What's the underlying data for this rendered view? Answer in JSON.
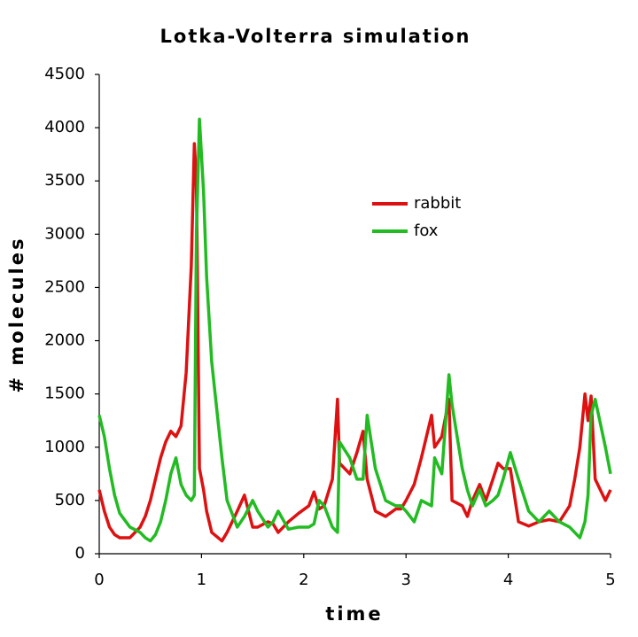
{
  "chart_data": {
    "type": "line",
    "title": "Lotka-Volterra simulation",
    "xlabel": "time",
    "ylabel": "# molecules",
    "x": [
      0,
      0.05,
      0.1,
      0.15,
      0.2,
      0.3,
      0.4,
      0.45,
      0.5,
      0.55,
      0.6,
      0.65,
      0.7,
      0.75,
      0.8,
      0.85,
      0.9,
      0.93,
      0.95,
      0.98,
      1.02,
      1.05,
      1.1,
      1.2,
      1.25,
      1.35,
      1.42,
      1.5,
      1.55,
      1.65,
      1.7,
      1.75,
      1.85,
      1.95,
      2.05,
      2.1,
      2.15,
      2.2,
      2.28,
      2.33,
      2.35,
      2.45,
      2.52,
      2.58,
      2.62,
      2.7,
      2.8,
      2.9,
      2.95,
      3.0,
      3.08,
      3.15,
      3.25,
      3.28,
      3.35,
      3.42,
      3.45,
      3.55,
      3.6,
      3.65,
      3.72,
      3.78,
      3.85,
      3.9,
      3.95,
      4.02,
      4.1,
      4.2,
      4.3,
      4.4,
      4.5,
      4.6,
      4.65,
      4.7,
      4.75,
      4.78,
      4.81,
      4.85,
      4.95,
      5.0
    ],
    "series": [
      {
        "name": "rabbit",
        "color": "#dd1111",
        "values": [
          600,
          400,
          250,
          180,
          150,
          150,
          250,
          350,
          500,
          700,
          900,
          1050,
          1150,
          1100,
          1200,
          1700,
          2700,
          3850,
          3500,
          800,
          600,
          400,
          200,
          120,
          200,
          400,
          550,
          250,
          250,
          300,
          280,
          200,
          300,
          380,
          450,
          580,
          420,
          450,
          700,
          1450,
          850,
          750,
          950,
          1150,
          700,
          400,
          350,
          420,
          420,
          500,
          650,
          900,
          1300,
          1000,
          1100,
          1450,
          500,
          450,
          350,
          500,
          650,
          500,
          700,
          850,
          800,
          800,
          300,
          260,
          300,
          320,
          300,
          450,
          700,
          1000,
          1500,
          1250,
          1480,
          700,
          500,
          600
        ]
      },
      {
        "name": "fox",
        "color": "#22bb22",
        "values": [
          1300,
          1100,
          800,
          550,
          380,
          250,
          200,
          150,
          120,
          180,
          300,
          500,
          750,
          900,
          650,
          550,
          500,
          550,
          3000,
          4080,
          3400,
          2600,
          1800,
          900,
          500,
          250,
          350,
          500,
          400,
          250,
          300,
          400,
          230,
          250,
          250,
          280,
          500,
          450,
          250,
          200,
          1050,
          900,
          700,
          700,
          1300,
          800,
          500,
          450,
          450,
          400,
          300,
          500,
          450,
          900,
          750,
          1680,
          1400,
          800,
          600,
          450,
          600,
          450,
          500,
          550,
          700,
          950,
          700,
          400,
          300,
          400,
          300,
          250,
          200,
          150,
          300,
          550,
          1300,
          1450,
          1000,
          750
        ]
      }
    ],
    "xlim": [
      0,
      5
    ],
    "xticks": [
      0,
      1,
      2,
      3,
      4,
      5
    ],
    "ylim": [
      0,
      4500
    ],
    "yticks": [
      0,
      500,
      1000,
      1500,
      2000,
      2500,
      3000,
      3500,
      4000,
      4500
    ],
    "grid": false,
    "legend": "upper right"
  }
}
